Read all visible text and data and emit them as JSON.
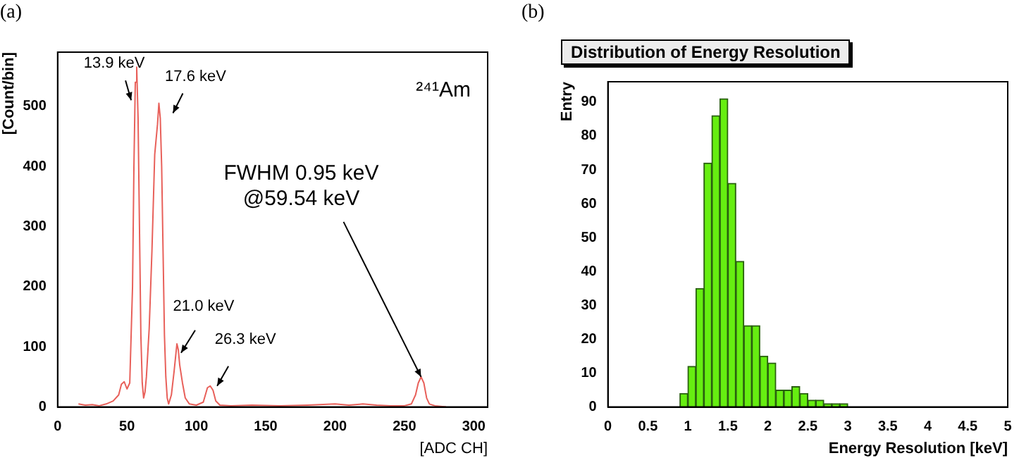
{
  "chart_data": [
    {
      "type": "line",
      "ylabel": "[Count/bin]",
      "xlabel": "[ADC CH]",
      "color": "#e8605a",
      "grid": false,
      "legend": false,
      "marker": "none",
      "x": [
        15,
        20,
        25,
        30,
        35,
        40,
        44,
        46,
        48,
        50,
        52,
        54,
        55,
        56,
        57,
        58,
        59,
        60,
        61,
        62,
        63,
        64,
        66,
        68,
        70,
        72,
        73,
        74,
        75,
        76,
        77,
        78,
        79,
        80,
        82,
        84,
        86,
        87,
        88,
        90,
        92,
        95,
        100,
        105,
        108,
        110,
        112,
        114,
        117,
        125,
        140,
        160,
        180,
        200,
        210,
        220,
        230,
        240,
        250,
        255,
        258,
        260,
        262,
        264,
        266,
        268,
        272,
        280
      ],
      "values": [
        5,
        3,
        4,
        2,
        5,
        10,
        20,
        38,
        42,
        30,
        40,
        200,
        400,
        540,
        565,
        480,
        300,
        120,
        40,
        15,
        25,
        50,
        130,
        260,
        420,
        470,
        505,
        480,
        400,
        260,
        120,
        50,
        15,
        5,
        20,
        60,
        105,
        95,
        70,
        40,
        15,
        5,
        3,
        8,
        32,
        35,
        28,
        10,
        3,
        2,
        3,
        2,
        3,
        5,
        3,
        5,
        3,
        2,
        2,
        5,
        20,
        40,
        50,
        40,
        15,
        5,
        2,
        0
      ],
      "xlim": [
        0,
        310
      ],
      "xticks": [
        0,
        50,
        100,
        150,
        200,
        250,
        300
      ],
      "ylim": [
        0,
        590
      ],
      "yticks": [
        0,
        100,
        200,
        300,
        400,
        500
      ],
      "annotations": [
        "(a)",
        "²⁴¹Am",
        {
          "text": "13.9 keV",
          "x": 53,
          "y": 510
        },
        {
          "text": "17.6 keV",
          "x": 73,
          "y": 505
        },
        {
          "text": "21.0 keV",
          "x": 89,
          "y": 90
        },
        {
          "text": "26.3 keV",
          "x": 115,
          "y": 35
        },
        {
          "text": "FWHM 0.95 keV\n@59.54 keV",
          "x": 262,
          "y": 50
        }
      ]
    },
    {
      "type": "histogram",
      "title": "Distribution of Energy Resolution",
      "ylabel": "Entry",
      "xlabel": "Energy Resolution [keV]",
      "color": "#66ee11",
      "grid": false,
      "legend": false,
      "bins": [
        0.9,
        1.0,
        1.1,
        1.2,
        1.3,
        1.4,
        1.5,
        1.6,
        1.7,
        1.8,
        1.9,
        2.0,
        2.1,
        2.2,
        2.3,
        2.4,
        2.5,
        2.6,
        2.7,
        2.8,
        2.9,
        3.0
      ],
      "values": [
        4,
        12,
        35,
        72,
        86,
        91,
        66,
        43,
        24,
        24,
        15,
        13,
        5,
        5,
        6,
        4,
        2,
        2,
        1,
        1,
        1
      ],
      "xlim": [
        0,
        5
      ],
      "xticks": [
        0,
        0.5,
        1,
        1.5,
        2,
        2.5,
        3,
        3.5,
        4,
        4.5,
        5
      ],
      "ylim": [
        0,
        96
      ],
      "yticks": [
        0,
        10,
        20,
        30,
        40,
        50,
        60,
        70,
        80,
        90
      ],
      "annotations": [
        "(b)"
      ]
    }
  ]
}
